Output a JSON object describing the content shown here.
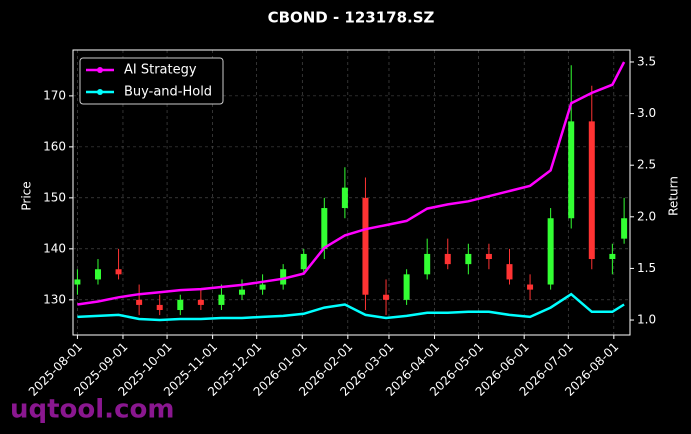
{
  "chart_data": {
    "type": "candlestick",
    "title": "CBOND - 123178.SZ",
    "ylabel": "Price",
    "y2label": "Return",
    "watermark": "uqtool.com",
    "x": [
      "2025-08-01",
      "2025-08-15",
      "2025-08-29",
      "2025-09-12",
      "2025-09-26",
      "2025-10-10",
      "2025-10-24",
      "2025-11-07",
      "2025-11-21",
      "2025-12-05",
      "2025-12-19",
      "2026-01-02",
      "2026-01-16",
      "2026-01-30",
      "2026-02-13",
      "2026-02-27",
      "2026-03-13",
      "2026-03-27",
      "2026-04-10",
      "2026-04-24",
      "2026-05-08",
      "2026-05-22",
      "2026-06-05",
      "2026-06-19",
      "2026-07-03",
      "2026-07-17",
      "2026-07-31",
      "2026-08-08"
    ],
    "open": [
      133,
      134,
      136,
      130,
      129,
      128,
      130,
      129,
      131,
      132,
      133,
      136,
      140,
      148,
      150,
      131,
      130,
      135,
      139,
      137,
      139,
      137,
      133,
      133,
      146,
      165,
      138,
      142
    ],
    "high": [
      136,
      138,
      140,
      133,
      131,
      131,
      132,
      133,
      134,
      135,
      137,
      140,
      150,
      156,
      154,
      134,
      136,
      142,
      142,
      141,
      141,
      140,
      135,
      148,
      176,
      172,
      141,
      150
    ],
    "low": [
      131,
      133,
      134,
      127,
      127,
      127,
      128,
      128,
      130,
      131,
      132,
      135,
      138,
      146,
      128,
      127,
      129,
      134,
      136,
      135,
      136,
      133,
      130,
      132,
      144,
      136,
      135,
      141
    ],
    "close": [
      134,
      136,
      135,
      129,
      128,
      130,
      129,
      131,
      132,
      133,
      136,
      139,
      148,
      152,
      131,
      130,
      135,
      139,
      137,
      139,
      138,
      134,
      132,
      146,
      165,
      138,
      139,
      146
    ],
    "up_color": "#33ff33",
    "down_color": "#ff3333",
    "series": [
      {
        "name": "AI Strategy",
        "color": "#ff00ff",
        "axis": "y2",
        "values": [
          1.15,
          1.18,
          1.22,
          1.25,
          1.27,
          1.29,
          1.3,
          1.32,
          1.34,
          1.37,
          1.4,
          1.45,
          1.7,
          1.82,
          1.88,
          1.92,
          1.96,
          2.08,
          2.12,
          2.15,
          2.2,
          2.25,
          2.3,
          2.45,
          3.1,
          3.2,
          3.28,
          3.5
        ]
      },
      {
        "name": "Buy-and-Hold",
        "color": "#00ffff",
        "axis": "y2",
        "values": [
          1.03,
          1.04,
          1.05,
          1.01,
          1.0,
          1.01,
          1.01,
          1.02,
          1.02,
          1.03,
          1.04,
          1.06,
          1.12,
          1.15,
          1.05,
          1.02,
          1.04,
          1.07,
          1.07,
          1.08,
          1.08,
          1.05,
          1.03,
          1.12,
          1.25,
          1.08,
          1.08,
          1.15
        ]
      }
    ],
    "xlim": [
      "2025-07-29",
      "2026-08-12"
    ],
    "xticks": [
      "2025-08-01",
      "2025-09-01",
      "2025-10-01",
      "2025-11-01",
      "2025-12-01",
      "2026-01-01",
      "2026-02-01",
      "2026-03-01",
      "2026-04-01",
      "2026-05-01",
      "2026-06-01",
      "2026-07-01",
      "2026-08-01"
    ],
    "ylim": [
      123.1,
      179.0
    ],
    "yticks": [
      130,
      140,
      150,
      160,
      170
    ],
    "y2lim": [
      0.855,
      3.616
    ],
    "y2ticks": [
      {
        "value": 1.0,
        "label": "1.0"
      },
      1.5,
      {
        "value": 2.0,
        "label": "2.0"
      },
      2.5,
      {
        "value": 3.0,
        "label": "3.0"
      },
      3.5
    ],
    "grid": true,
    "legend": "upper left"
  }
}
